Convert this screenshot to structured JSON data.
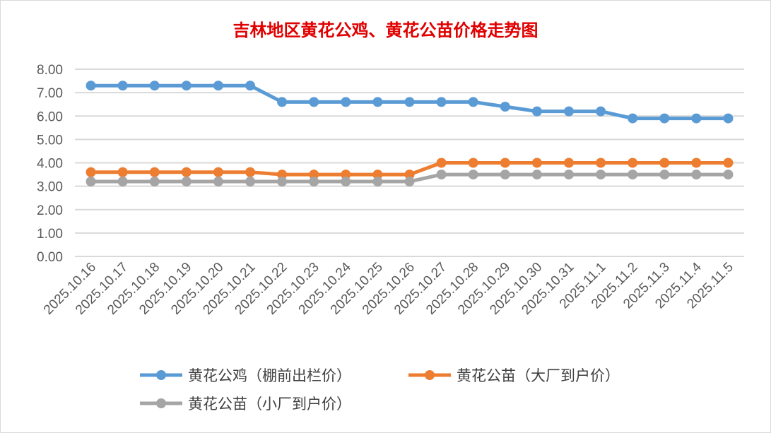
{
  "chart_data": {
    "type": "line",
    "title": "吉林地区黄花公鸡、黄花公苗价格走势图",
    "xlabel": "",
    "ylabel": "",
    "ylim": [
      0,
      8
    ],
    "yticks": [
      "0.00",
      "1.00",
      "2.00",
      "3.00",
      "4.00",
      "5.00",
      "6.00",
      "7.00",
      "8.00"
    ],
    "categories": [
      "2025.10.16",
      "2025.10.17",
      "2025.10.18",
      "2025.10.19",
      "2025.10.20",
      "2025.10.21",
      "2025.10.22",
      "2025.10.23",
      "2025.10.24",
      "2025.10.25",
      "2025.10.26",
      "2025.10.27",
      "2025.10.28",
      "2025.10.29",
      "2025.10.30",
      "2025.10.31",
      "2025.11.1",
      "2025.11.2",
      "2025.11.3",
      "2025.11.4",
      "2025.11.5"
    ],
    "grid": true,
    "legend": "bottom",
    "series": [
      {
        "name": "黄花公鸡（棚前出栏价）",
        "color": "#5b9bd5",
        "values": [
          7.3,
          7.3,
          7.3,
          7.3,
          7.3,
          7.3,
          6.6,
          6.6,
          6.6,
          6.6,
          6.6,
          6.6,
          6.6,
          6.4,
          6.2,
          6.2,
          6.2,
          5.9,
          5.9,
          5.9,
          5.9
        ]
      },
      {
        "name": "黄花公苗（大厂到户价）",
        "color": "#ed7d31",
        "values": [
          3.6,
          3.6,
          3.6,
          3.6,
          3.6,
          3.6,
          3.5,
          3.5,
          3.5,
          3.5,
          3.5,
          4.0,
          4.0,
          4.0,
          4.0,
          4.0,
          4.0,
          4.0,
          4.0,
          4.0,
          4.0
        ]
      },
      {
        "name": "黄花公苗（小厂到户价）",
        "color": "#a5a5a5",
        "values": [
          3.2,
          3.2,
          3.2,
          3.2,
          3.2,
          3.2,
          3.2,
          3.2,
          3.2,
          3.2,
          3.2,
          3.5,
          3.5,
          3.5,
          3.5,
          3.5,
          3.5,
          3.5,
          3.5,
          3.5,
          3.5
        ]
      }
    ]
  }
}
